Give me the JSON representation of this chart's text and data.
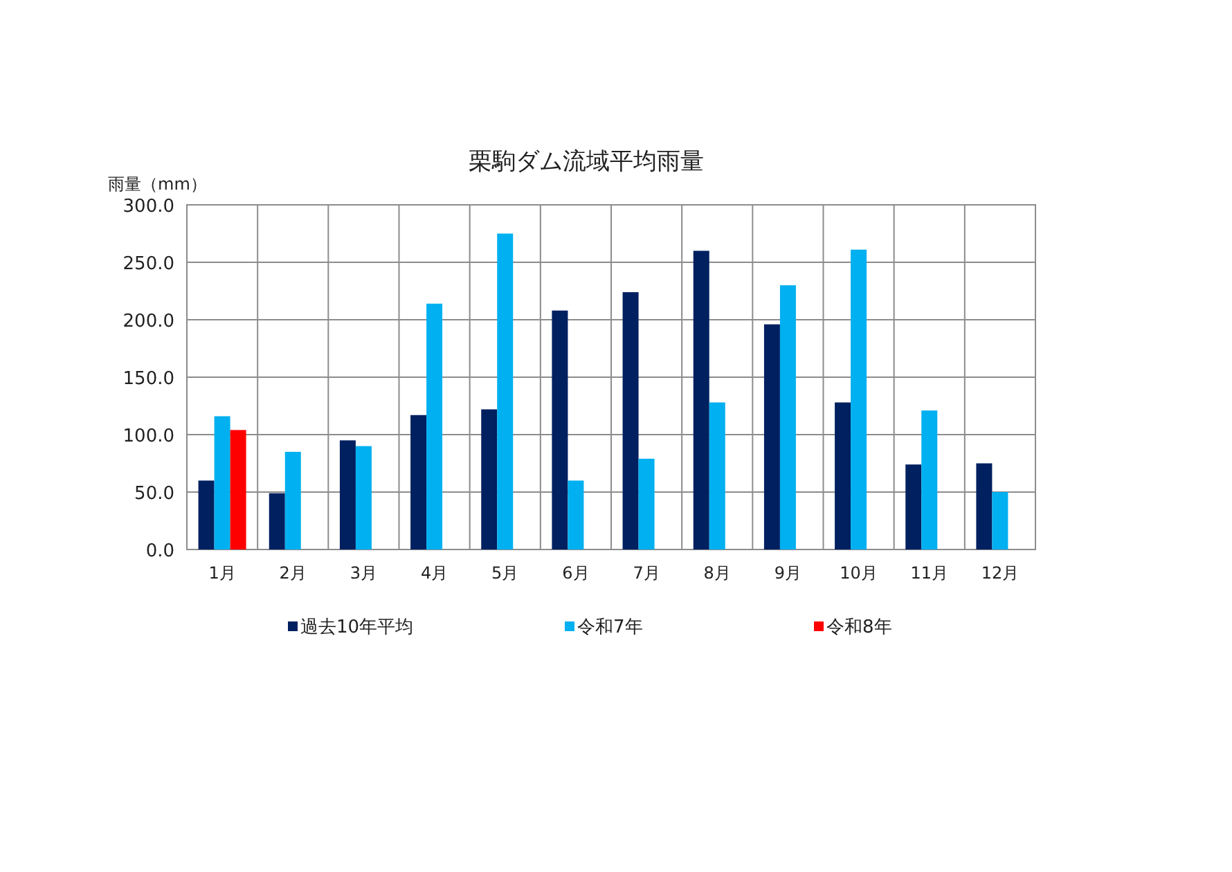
{
  "chart_data": {
    "type": "bar",
    "title": "栗駒ダム流域平均雨量",
    "ylabel": "雨量（mm）",
    "categories": [
      "1月",
      "2月",
      "3月",
      "4月",
      "5月",
      "6月",
      "7月",
      "8月",
      "9月",
      "10月",
      "11月",
      "12月"
    ],
    "series": [
      {
        "name": "過去10年平均",
        "color": "#002060",
        "values": [
          60,
          49,
          95,
          117,
          122,
          208,
          224,
          260,
          196,
          128,
          74,
          75
        ]
      },
      {
        "name": "令和7年",
        "color": "#00b0f0",
        "values": [
          116,
          85,
          90,
          214,
          275,
          60,
          79,
          128,
          230,
          261,
          121,
          50
        ]
      },
      {
        "name": "令和8年",
        "color": "#ff0000",
        "values": [
          104,
          null,
          null,
          null,
          null,
          null,
          null,
          null,
          null,
          null,
          null,
          null
        ]
      }
    ],
    "ylim": [
      0,
      300
    ],
    "yticks": [
      {
        "value": 0,
        "label": "0.0"
      },
      {
        "value": 50,
        "label": "50.0"
      },
      {
        "value": 100,
        "label": "100.0"
      },
      {
        "value": 150,
        "label": "150.0"
      },
      {
        "value": 200,
        "label": "200.0"
      },
      {
        "value": 250,
        "label": "250.0"
      },
      {
        "value": 300,
        "label": "300.0"
      }
    ],
    "grid": true,
    "legend": "bottom"
  }
}
